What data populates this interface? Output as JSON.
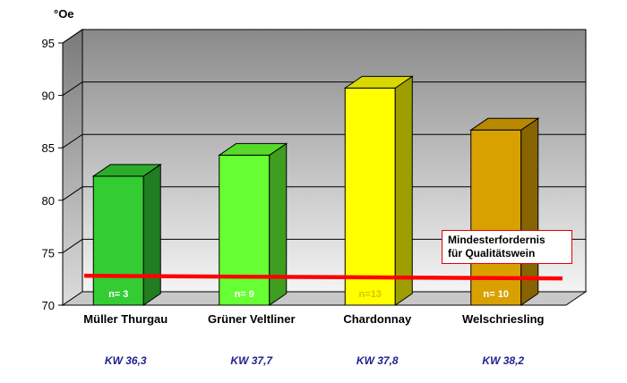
{
  "chart_data": {
    "type": "bar",
    "unit_label": "°Oe",
    "ylim": [
      70,
      95
    ],
    "yticks": [
      70,
      75,
      80,
      85,
      90,
      95
    ],
    "grid": true,
    "categories": [
      "Müller Thurgau",
      "Grüner Veltliner",
      "Chardonnay",
      "Welschriesling"
    ],
    "values": [
      82.3,
      84.3,
      90.7,
      86.7
    ],
    "sample_labels": [
      "n= 3",
      "n= 9",
      "n=13",
      "n= 10"
    ],
    "kw_labels": [
      "KW  36,3",
      "KW  37,7",
      "KW  37,8",
      "KW 38,2"
    ],
    "bar_colors": [
      "#33cc33",
      "#66ff33",
      "#ffff00",
      "#d9a100"
    ],
    "sample_label_colors": [
      "#ffffff",
      "#ffffff",
      "#d9c200",
      "#ffffff"
    ],
    "threshold": {
      "value": 72.8,
      "color": "#ff0000",
      "label_line1": "Mindesterfordernis",
      "label_line2": "für Qualitätswein"
    }
  }
}
